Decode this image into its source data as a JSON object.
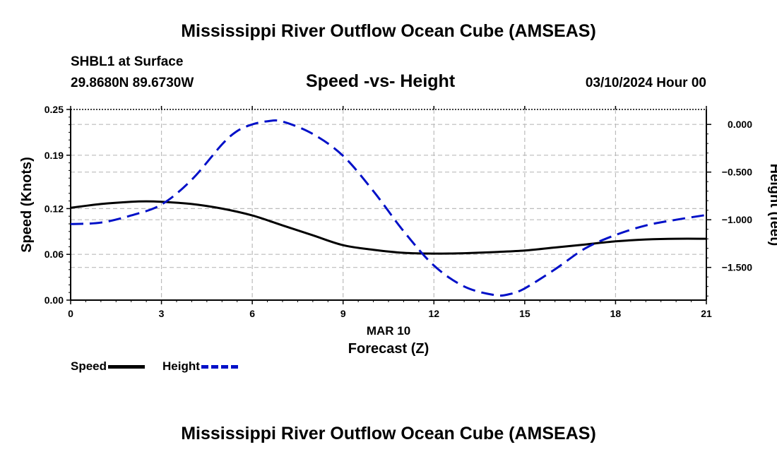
{
  "header": {
    "main_title": "Mississippi River Outflow Ocean Cube (AMSEAS)",
    "station": "SHBL1 at Surface",
    "coords": "29.8680N  89.6730W",
    "chart_title": "Speed -vs- Height",
    "datetime": "03/10/2024 Hour 00"
  },
  "footer": {
    "repeat_title": "Mississippi River Outflow Ocean Cube (AMSEAS)"
  },
  "legend": {
    "speed_label": "Speed",
    "height_label": "Height"
  },
  "colors": {
    "speed": "#000000",
    "height": "#0010c8",
    "grid": "#bbbbbb"
  },
  "chart_data": {
    "type": "line",
    "title": "Speed -vs- Height",
    "xlabel": "Forecast (Z)",
    "xlabel_date": "MAR 10",
    "xlim": [
      0,
      21
    ],
    "x_ticks": [
      0,
      3,
      6,
      9,
      12,
      15,
      18,
      21
    ],
    "y_left": {
      "label": "Speed (Knots)",
      "lim": [
        0,
        0.25
      ],
      "ticks": [
        0.0,
        0.06,
        0.12,
        0.19,
        0.25
      ],
      "tick_labels": [
        "0.00",
        "0.06",
        "0.12",
        "0.19",
        "0.25"
      ]
    },
    "y_right": {
      "label": "Height (feet)",
      "lim": [
        -1.843,
        0.157
      ],
      "ticks": [
        0.0,
        -0.5,
        -1.0,
        -1.5
      ],
      "tick_labels": [
        "0.000",
        "−0.500",
        "−1.000",
        "−1.500"
      ]
    },
    "series": [
      {
        "name": "Speed",
        "axis": "left",
        "style": "solid",
        "x": [
          0,
          1,
          2,
          2.5,
          3,
          4,
          5,
          6,
          7,
          8,
          9,
          10,
          11,
          12,
          13,
          14,
          15,
          16,
          17,
          18,
          19,
          20,
          21
        ],
        "values": [
          0.121,
          0.126,
          0.129,
          0.1295,
          0.129,
          0.126,
          0.12,
          0.111,
          0.098,
          0.085,
          0.072,
          0.066,
          0.062,
          0.061,
          0.0615,
          0.063,
          0.065,
          0.069,
          0.073,
          0.077,
          0.0795,
          0.0805,
          0.0805
        ]
      },
      {
        "name": "Height",
        "axis": "right",
        "style": "dashed",
        "x": [
          0,
          1,
          2,
          3,
          4,
          5,
          5.5,
          6,
          6.5,
          7,
          8,
          9,
          10,
          11,
          12,
          13,
          14,
          14.5,
          15,
          16,
          17,
          18,
          19,
          20,
          21
        ],
        "values": [
          -1.045,
          -1.03,
          -0.955,
          -0.84,
          -0.58,
          -0.21,
          -0.07,
          0.0,
          0.033,
          0.03,
          -0.1,
          -0.33,
          -0.7,
          -1.12,
          -1.48,
          -1.7,
          -1.79,
          -1.78,
          -1.72,
          -1.52,
          -1.3,
          -1.16,
          -1.06,
          -1.0,
          -0.95
        ]
      }
    ]
  }
}
